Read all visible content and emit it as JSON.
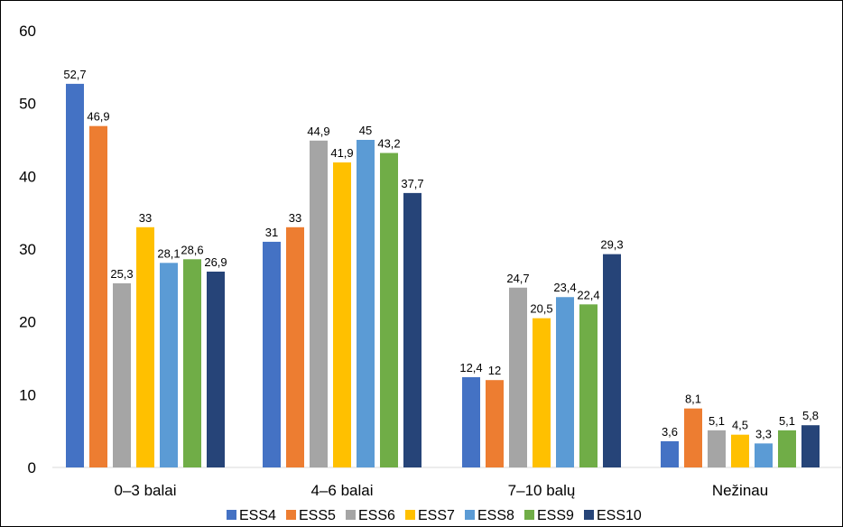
{
  "chart_data": {
    "type": "bar",
    "title": "",
    "xlabel": "",
    "ylabel": "",
    "ylim": [
      0,
      60
    ],
    "yticks": [
      0,
      10,
      20,
      30,
      40,
      50,
      60
    ],
    "grid": false,
    "legend_position": "bottom",
    "categories": [
      "0–3 balai",
      "4–6 balai",
      "7–10 balų",
      "Nežinau"
    ],
    "series": [
      {
        "name": "ESS4",
        "color": "#4472c4",
        "values": [
          52.7,
          31,
          12.4,
          3.6
        ],
        "labels": [
          "52,7",
          "31",
          "12,4",
          "3,6"
        ]
      },
      {
        "name": "ESS5",
        "color": "#ed7d31",
        "values": [
          46.9,
          33,
          12,
          8.1
        ],
        "labels": [
          "46,9",
          "33",
          "12",
          "8,1"
        ]
      },
      {
        "name": "ESS6",
        "color": "#a5a5a5",
        "values": [
          25.3,
          44.9,
          24.7,
          5.1
        ],
        "labels": [
          "25,3",
          "44,9",
          "24,7",
          "5,1"
        ]
      },
      {
        "name": "ESS7",
        "color": "#ffc000",
        "values": [
          33,
          41.9,
          20.5,
          4.5
        ],
        "labels": [
          "33",
          "41,9",
          "20,5",
          "4,5"
        ]
      },
      {
        "name": "ESS8",
        "color": "#5b9bd5",
        "values": [
          28.1,
          45,
          23.4,
          3.3
        ],
        "labels": [
          "28,1",
          "45",
          "23,4",
          "3,3"
        ]
      },
      {
        "name": "ESS9",
        "color": "#70ad47",
        "values": [
          28.6,
          43.2,
          22.4,
          5.1
        ],
        "labels": [
          "28,6",
          "43,2",
          "22,4",
          "5,1"
        ]
      },
      {
        "name": "ESS10",
        "color": "#264478",
        "values": [
          26.9,
          37.7,
          29.3,
          5.8
        ],
        "labels": [
          "26,9",
          "37,7",
          "29,3",
          "5,8"
        ]
      }
    ]
  }
}
